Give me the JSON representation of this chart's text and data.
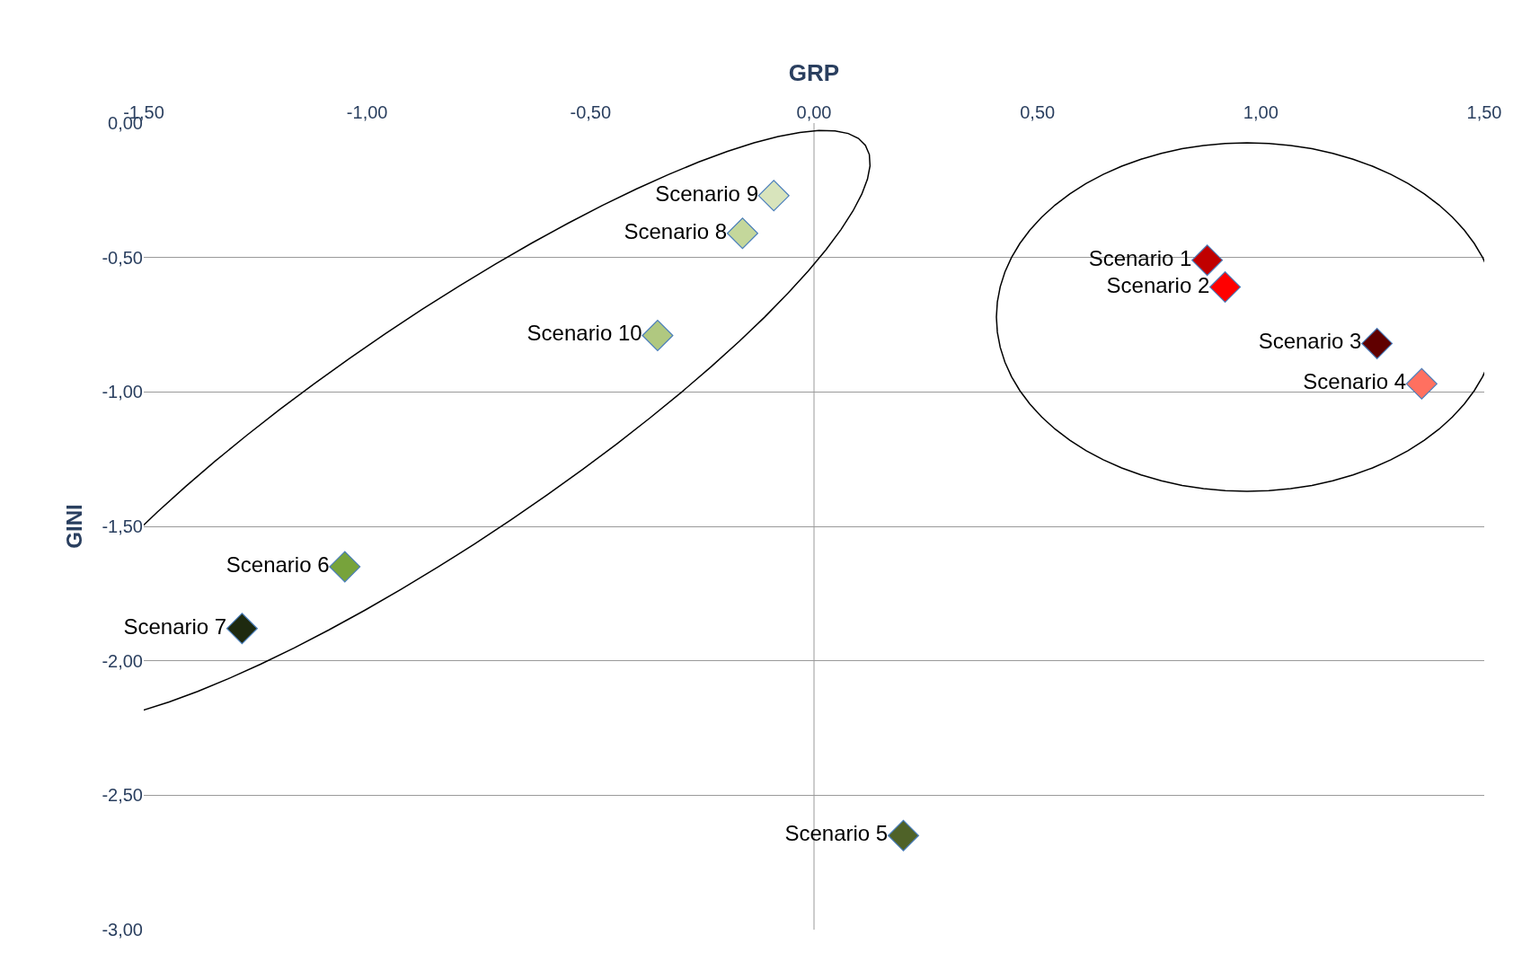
{
  "chart_data": {
    "type": "scatter",
    "xlabel": "GRP",
    "ylabel": "GINI",
    "series": [
      {
        "name": "Scenario 1",
        "color": "#c00000",
        "x": [
          0.88
        ],
        "values": [
          -0.51
        ]
      },
      {
        "name": "Scenario 2",
        "color": "#ff0000",
        "x": [
          0.92
        ],
        "values": [
          -0.61
        ]
      },
      {
        "name": "Scenario 3",
        "color": "#600000",
        "x": [
          1.26
        ],
        "values": [
          -0.82
        ]
      },
      {
        "name": "Scenario 4",
        "color": "#ff7060",
        "x": [
          1.36
        ],
        "values": [
          -0.97
        ]
      },
      {
        "name": "Scenario 5",
        "color": "#4f6228",
        "x": [
          0.2
        ],
        "values": [
          -2.65
        ]
      },
      {
        "name": "Scenario 6",
        "color": "#77a33b",
        "x": [
          -1.05
        ],
        "values": [
          -1.65
        ]
      },
      {
        "name": "Scenario 7",
        "color": "#1e2a10",
        "x": [
          -1.28
        ],
        "values": [
          -1.88
        ]
      },
      {
        "name": "Scenario 8",
        "color": "#c4d79b",
        "x": [
          -0.16
        ],
        "values": [
          -0.41
        ]
      },
      {
        "name": "Scenario 9",
        "color": "#d8e4bc",
        "x": [
          -0.09
        ],
        "values": [
          -0.27
        ]
      },
      {
        "name": "Scenario 10",
        "color": "#b0c880",
        "x": [
          -0.35
        ],
        "values": [
          -0.79
        ]
      }
    ],
    "xlim": [
      -1.5,
      1.5
    ],
    "xticks": [
      {
        "value": -1.5,
        "label": "-1,50"
      },
      {
        "value": -1.0,
        "label": "-1,00"
      },
      {
        "value": -0.5,
        "label": "-0,50"
      },
      {
        "value": 0,
        "label": "0,00"
      },
      {
        "value": 0.5,
        "label": "0,50"
      },
      {
        "value": 1.0,
        "label": "1,00"
      },
      {
        "value": 1.5,
        "label": "1,50"
      }
    ],
    "ylim": [
      -3,
      0
    ],
    "yticks": [
      {
        "value": 0,
        "label": "0,00"
      },
      {
        "value": -0.5,
        "label": "-0,50"
      },
      {
        "value": -1.0,
        "label": "-1,00"
      },
      {
        "value": -1.5,
        "label": "-1,50"
      },
      {
        "value": -2.0,
        "label": "-2,00"
      },
      {
        "value": -2.5,
        "label": "-2,50"
      },
      {
        "value": -3.0,
        "label": "-3,00"
      }
    ],
    "ref_lines": [
      {
        "axis": "x",
        "value": 0,
        "color": "#9a9a9a"
      }
    ],
    "grid": "y",
    "legend": false,
    "marker": "diamond"
  }
}
